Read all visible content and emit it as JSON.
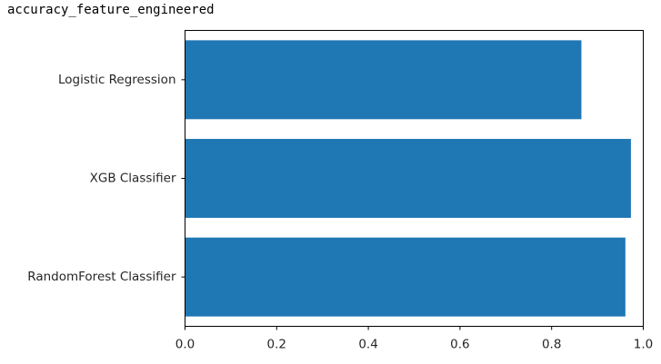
{
  "output_label": "accuracy_feature_engineered",
  "chart_data": {
    "type": "bar",
    "orientation": "horizontal",
    "categories": [
      "RandomForest Classifier",
      "XGB Classifier",
      "Logistic Regression"
    ],
    "values": [
      0.961,
      0.973,
      0.865
    ],
    "title": "",
    "xlabel": "",
    "ylabel": "",
    "xlim": [
      0.0,
      1.0
    ],
    "xticks": [
      "0.0",
      "0.2",
      "0.4",
      "0.6",
      "0.8",
      "1.0"
    ],
    "grid": false,
    "legend": "none",
    "bar_color": "#1f77b4"
  }
}
